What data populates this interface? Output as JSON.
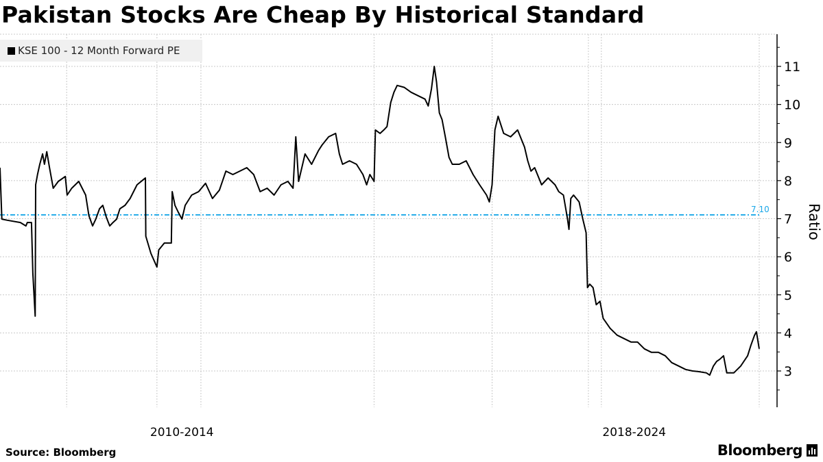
{
  "chart_data": {
    "type": "line",
    "title": "Pakistan Stocks Are Cheap By Historical Standard",
    "legend": [
      "KSE 100 - 12 Month Forward PE"
    ],
    "legend_placement": "top-left",
    "xlabel": "",
    "ylabel": "Ratio",
    "x_tick_labels": [
      {
        "label": "2010-2014",
        "x": 2011.93
      },
      {
        "label": "2018-2024",
        "x": 2021.7
      }
    ],
    "x_grid": [
      2009.44,
      2011.39,
      2012.34,
      2016.08,
      2018.63,
      2020.71,
      2020.99,
      2024.4
    ],
    "xlim": [
      2008.0,
      2024.4
    ],
    "ylim": [
      2.1,
      11.8
    ],
    "y_ticks": [
      3,
      4,
      5,
      6,
      7,
      8,
      9,
      10,
      11
    ],
    "grid": true,
    "reference_line": {
      "value": 7.1,
      "label": "7.10",
      "color": "#1aa7e8"
    },
    "series": [
      {
        "name": "KSE 100 - 12 Month Forward PE",
        "color": "#000000",
        "x": [
          2008.0,
          2008.04,
          2008.15,
          2008.44,
          2008.56,
          2008.59,
          2008.68,
          2008.71,
          2008.76,
          2008.77,
          2008.81,
          2008.86,
          2008.92,
          2008.96,
          2009.01,
          2009.07,
          2009.15,
          2009.26,
          2009.41,
          2009.45,
          2009.55,
          2009.7,
          2009.85,
          2009.92,
          2010.0,
          2010.07,
          2010.15,
          2010.22,
          2010.3,
          2010.37,
          2010.44,
          2010.52,
          2010.59,
          2010.7,
          2010.81,
          2010.96,
          2011.11,
          2011.14,
          2011.15,
          2011.26,
          2011.39,
          2011.43,
          2011.55,
          2011.7,
          2011.72,
          2011.78,
          2011.85,
          2011.93,
          2012.0,
          2012.14,
          2012.29,
          2012.44,
          2012.59,
          2012.74,
          2012.88,
          2013.03,
          2013.18,
          2013.33,
          2013.48,
          2013.62,
          2013.77,
          2013.92,
          2014.07,
          2014.22,
          2014.33,
          2014.39,
          2014.45,
          2014.59,
          2014.73,
          2014.88,
          2014.96,
          2015.1,
          2015.25,
          2015.33,
          2015.4,
          2015.55,
          2015.7,
          2015.84,
          2015.92,
          2015.99,
          2016.08,
          2016.11,
          2016.21,
          2016.29,
          2016.36,
          2016.44,
          2016.51,
          2016.58,
          2016.73,
          2016.88,
          2017.03,
          2017.18,
          2017.25,
          2017.32,
          2017.38,
          2017.43,
          2017.49,
          2017.55,
          2017.62,
          2017.7,
          2017.77,
          2017.92,
          2018.07,
          2018.22,
          2018.36,
          2018.51,
          2018.57,
          2018.63,
          2018.69,
          2018.76,
          2018.88,
          2019.03,
          2019.18,
          2019.33,
          2019.4,
          2019.47,
          2019.55,
          2019.7,
          2019.84,
          2019.99,
          2020.07,
          2020.17,
          2020.26,
          2020.29,
          2020.33,
          2020.39,
          2020.51,
          2020.59,
          2020.66,
          2020.69,
          2020.74,
          2020.81,
          2020.88,
          2020.96,
          2021.03,
          2021.18,
          2021.33,
          2021.48,
          2021.63,
          2021.77,
          2021.92,
          2022.07,
          2022.22,
          2022.37,
          2022.51,
          2022.66,
          2022.81,
          2022.96,
          2023.11,
          2023.26,
          2023.33,
          2023.41,
          2023.48,
          2023.55,
          2023.63,
          2023.7,
          2023.85,
          2024.0,
          2024.15,
          2024.22,
          2024.3,
          2024.34,
          2024.4
        ],
        "y": [
          8.34,
          6.99,
          6.96,
          6.9,
          6.81,
          6.9,
          6.9,
          5.56,
          4.44,
          7.89,
          8.16,
          8.43,
          8.7,
          8.43,
          8.76,
          8.34,
          7.8,
          7.98,
          8.11,
          7.62,
          7.8,
          7.98,
          7.62,
          7.08,
          6.81,
          6.99,
          7.26,
          7.35,
          7.03,
          6.81,
          6.9,
          6.99,
          7.26,
          7.35,
          7.53,
          7.89,
          8.04,
          8.07,
          6.54,
          6.09,
          5.73,
          6.18,
          6.36,
          6.36,
          7.71,
          7.35,
          7.17,
          6.99,
          7.35,
          7.62,
          7.71,
          7.93,
          7.53,
          7.75,
          8.25,
          8.16,
          8.25,
          8.34,
          8.16,
          7.71,
          7.8,
          7.62,
          7.89,
          7.98,
          7.8,
          9.15,
          7.98,
          8.7,
          8.43,
          8.79,
          8.94,
          9.15,
          9.24,
          8.7,
          8.43,
          8.52,
          8.43,
          8.16,
          7.89,
          8.16,
          7.98,
          9.33,
          9.24,
          9.33,
          9.42,
          10.05,
          10.32,
          10.5,
          10.45,
          10.32,
          10.23,
          10.14,
          9.96,
          10.41,
          11.0,
          10.59,
          9.78,
          9.6,
          9.15,
          8.61,
          8.43,
          8.43,
          8.52,
          8.16,
          7.89,
          7.62,
          7.44,
          7.89,
          9.33,
          9.69,
          9.24,
          9.15,
          9.33,
          8.88,
          8.52,
          8.25,
          8.34,
          7.89,
          8.07,
          7.89,
          7.71,
          7.62,
          6.99,
          6.72,
          7.53,
          7.62,
          7.44,
          6.99,
          6.63,
          5.19,
          5.28,
          5.19,
          4.74,
          4.83,
          4.38,
          4.12,
          3.94,
          3.85,
          3.76,
          3.76,
          3.58,
          3.49,
          3.49,
          3.4,
          3.22,
          3.13,
          3.04,
          3.0,
          2.98,
          2.95,
          2.89,
          3.13,
          3.25,
          3.31,
          3.4,
          2.95,
          2.95,
          3.13,
          3.4,
          3.67,
          3.94,
          4.03,
          3.58
        ]
      }
    ],
    "source": "Source:  Bloomberg",
    "logo": "Bloomberg"
  }
}
